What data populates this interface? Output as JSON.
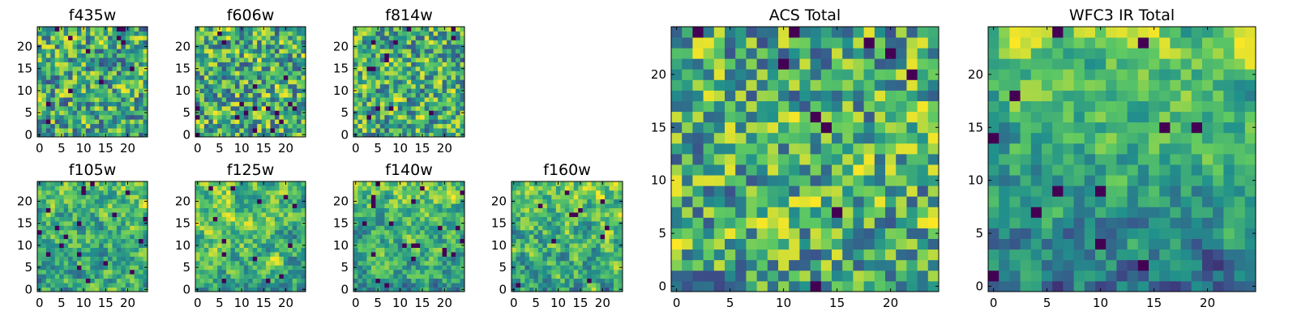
{
  "figure": {
    "colormap": "viridis",
    "colormap_stops": [
      "#440154",
      "#3b528b",
      "#21918c",
      "#5ec962",
      "#fde725"
    ],
    "background": "#ffffff"
  },
  "chart_data": [
    {
      "type": "heatmap",
      "title": "f435w",
      "xlim": [
        -0.5,
        24.5
      ],
      "ylim": [
        -0.5,
        24.5
      ],
      "xticks": [
        0,
        5,
        10,
        15,
        20
      ],
      "yticks": [
        0,
        5,
        10,
        15,
        20
      ],
      "grid": false,
      "seed": 11,
      "smooth": 0.2,
      "trend": 0
    },
    {
      "type": "heatmap",
      "title": "f606w",
      "xlim": [
        -0.5,
        24.5
      ],
      "ylim": [
        -0.5,
        24.5
      ],
      "xticks": [
        0,
        5,
        10,
        15,
        20
      ],
      "yticks": [
        0,
        5,
        10,
        15,
        20
      ],
      "grid": false,
      "seed": 23,
      "smooth": 0.2,
      "trend": 0
    },
    {
      "type": "heatmap",
      "title": "f814w",
      "xlim": [
        -0.5,
        24.5
      ],
      "ylim": [
        -0.5,
        24.5
      ],
      "xticks": [
        0,
        5,
        10,
        15,
        20
      ],
      "yticks": [
        0,
        5,
        10,
        15,
        20
      ],
      "grid": false,
      "seed": 37,
      "smooth": 0.25,
      "trend": 0
    },
    {
      "type": "heatmap",
      "title": "f105w",
      "xlim": [
        -0.5,
        24.5
      ],
      "ylim": [
        -0.5,
        24.5
      ],
      "xticks": [
        0,
        5,
        10,
        15,
        20
      ],
      "yticks": [
        0,
        5,
        10,
        15,
        20
      ],
      "grid": false,
      "seed": 41,
      "smooth": 0.55,
      "trend": 0.1
    },
    {
      "type": "heatmap",
      "title": "f125w",
      "xlim": [
        -0.5,
        24.5
      ],
      "ylim": [
        -0.5,
        24.5
      ],
      "xticks": [
        0,
        5,
        10,
        15,
        20
      ],
      "yticks": [
        0,
        5,
        10,
        15,
        20
      ],
      "grid": false,
      "seed": 53,
      "smooth": 0.6,
      "trend": 0.15
    },
    {
      "type": "heatmap",
      "title": "f140w",
      "xlim": [
        -0.5,
        24.5
      ],
      "ylim": [
        -0.5,
        24.5
      ],
      "xticks": [
        0,
        5,
        10,
        15,
        20
      ],
      "yticks": [
        0,
        5,
        10,
        15,
        20
      ],
      "grid": false,
      "seed": 67,
      "smooth": 0.6,
      "trend": 0.2
    },
    {
      "type": "heatmap",
      "title": "f160w",
      "xlim": [
        -0.5,
        24.5
      ],
      "ylim": [
        -0.5,
        24.5
      ],
      "xticks": [
        0,
        5,
        10,
        15,
        20
      ],
      "yticks": [
        0,
        5,
        10,
        15,
        20
      ],
      "grid": false,
      "seed": 79,
      "smooth": 0.55,
      "trend": 0.15
    },
    {
      "type": "heatmap",
      "title": "ACS Total",
      "xlim": [
        -0.5,
        24.5
      ],
      "ylim": [
        -0.5,
        24.5
      ],
      "xticks": [
        0,
        5,
        10,
        15,
        20
      ],
      "yticks": [
        0,
        5,
        10,
        15,
        20
      ],
      "grid": false,
      "seed": 97,
      "smooth": 0.2,
      "trend": 0
    },
    {
      "type": "heatmap",
      "title": "WFC3 IR Total",
      "xlim": [
        -0.5,
        24.5
      ],
      "ylim": [
        -0.5,
        24.5
      ],
      "xticks": [
        0,
        5,
        10,
        15,
        20
      ],
      "yticks": [
        0,
        5,
        10,
        15,
        20
      ],
      "grid": false,
      "seed": 113,
      "smooth": 0.6,
      "trend": 0.45
    }
  ]
}
